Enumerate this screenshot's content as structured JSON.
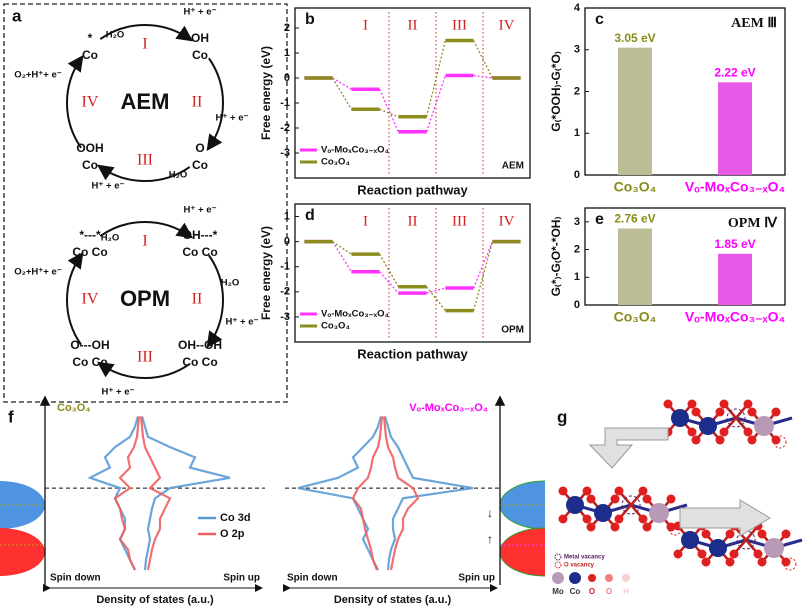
{
  "diagram_a": {
    "label": "a",
    "cycles": [
      {
        "title": "AEM",
        "steps": [
          "I",
          "II",
          "III",
          "IV"
        ],
        "species": [
          [
            "*",
            "Co"
          ],
          [
            "OH",
            "Co"
          ],
          [
            "O",
            "Co"
          ],
          [
            "OOH",
            "Co"
          ]
        ],
        "reactants": [
          "H₂O",
          "H⁺ + e⁻",
          "H⁺ + e⁻",
          "H₂O",
          "H⁺ + e⁻",
          "O₂+H⁺+ e⁻"
        ]
      },
      {
        "title": "OPM",
        "steps": [
          "I",
          "II",
          "III",
          "IV"
        ],
        "species": [
          [
            "*---*",
            "Co Co"
          ],
          [
            "OH---*",
            "Co Co"
          ],
          [
            "OH--OH",
            "Co Co"
          ],
          [
            "O---OH",
            "Co Co"
          ]
        ],
        "reactants": [
          "H₂O",
          "H⁺ + e⁻",
          "H₂O",
          "H⁺ + e⁻",
          "H⁺ + e⁻",
          "O₂+H⁺+ e⁻"
        ]
      }
    ]
  },
  "chart_data": [
    {
      "type": "energy_profile",
      "label": "b",
      "xlabel": "Reaction pathway",
      "ylabel": "Free energy (eV)",
      "annotation": "AEM",
      "steps": [
        "I",
        "II",
        "III",
        "IV"
      ],
      "ylim": [
        -4,
        2.8
      ],
      "yticks": [
        -3,
        -2,
        -1,
        0,
        1,
        2
      ],
      "series": [
        {
          "name": "Vₒ-MoₓCo₃₋ₓO₄",
          "color": "#ff33ff",
          "values": [
            0,
            -0.45,
            -2.15,
            0.1,
            0
          ]
        },
        {
          "name": "Co₃O₄",
          "color": "#8c8c1e",
          "values": [
            0,
            -1.25,
            -1.55,
            1.5,
            0
          ]
        }
      ]
    },
    {
      "type": "bar",
      "label": "c",
      "ylabel": "G₍*OOH₎-G₍*O₎",
      "annotation": "AEM Ⅲ",
      "categories": [
        "Co₃O₄",
        "Vₒ-MoₓCo₃₋ₓO₄"
      ],
      "values": [
        3.05,
        2.22
      ],
      "value_labels": [
        "3.05 eV",
        "2.22 eV"
      ],
      "colors": [
        "#bdbd95",
        "#e75ae7"
      ],
      "label_colors": [
        "#8b8b1a",
        "#ff00ff"
      ],
      "ylim": [
        0,
        4
      ],
      "yticks": [
        0,
        1,
        2,
        3,
        4
      ]
    },
    {
      "type": "energy_profile",
      "label": "d",
      "xlabel": "Reaction pathway",
      "ylabel": "Free energy (eV)",
      "annotation": "OPM",
      "steps": [
        "I",
        "II",
        "III",
        "IV"
      ],
      "ylim": [
        -4,
        1.5
      ],
      "yticks": [
        -3,
        -2,
        -1,
        0,
        1
      ],
      "series": [
        {
          "name": "Vₒ-MoₓCo₃₋ₓO₄",
          "color": "#ff33ff",
          "values": [
            0,
            -1.2,
            -2.05,
            -1.85,
            0
          ]
        },
        {
          "name": "Co₃O₄",
          "color": "#8c8c1e",
          "values": [
            0,
            -0.5,
            -1.8,
            -2.75,
            0
          ]
        }
      ]
    },
    {
      "type": "bar",
      "label": "e",
      "ylabel": "G₍*₎-G₍O*-*OH₎",
      "annotation": "OPM Ⅳ",
      "categories": [
        "Co₃O₄",
        "Vₒ-MoₓCo₃₋ₓO₄"
      ],
      "values": [
        2.76,
        1.85
      ],
      "value_labels": [
        "2.76 eV",
        "1.85 eV"
      ],
      "colors": [
        "#bdbd95",
        "#e75ae7"
      ],
      "label_colors": [
        "#8b8b1a",
        "#ff00ff"
      ],
      "ylim": [
        0,
        3.5
      ],
      "yticks": [
        0,
        1,
        2,
        3
      ]
    },
    {
      "type": "dos",
      "label": "f",
      "xlim": [
        -1,
        1
      ],
      "ylim": [
        -4,
        4.3
      ],
      "energy": [
        3.5,
        3,
        2.5,
        2,
        1.5,
        1,
        0.5,
        0,
        -0.5,
        -1,
        -1.5,
        -2,
        -2.5,
        -3,
        -3.5,
        -4
      ],
      "panels": [
        {
          "title": "Co₃O₄",
          "title_color": "#8b8b1a",
          "spin_down": "Spin down",
          "spin_up": "Spin up",
          "xlabel": "Density of states (a.u.)",
          "series": [
            {
              "name": "Co 3d",
              "color": "#5b9bd5",
              "up": [
                0.02,
                0.05,
                0.08,
                0.3,
                0.55,
                0.5,
                0.9,
                0.3,
                0.15,
                0.12,
                0.1,
                0.08,
                0.1,
                0.08,
                0.06,
                0.05
              ],
              "down": [
                -0.02,
                -0.05,
                -0.1,
                -0.25,
                -0.35,
                -0.3,
                -0.5,
                -0.2,
                -0.25,
                -0.2,
                -0.15,
                -0.15,
                -0.2,
                -0.15,
                -0.1,
                -0.05
              ]
            },
            {
              "name": "O 2p",
              "color": "#f06060",
              "up": [
                0.01,
                0.02,
                0.03,
                0.05,
                0.1,
                0.15,
                0.2,
                0.1,
                0.3,
                0.25,
                0.2,
                0.2,
                0.15,
                0.12,
                0.1,
                0.08
              ],
              "down": [
                -0.01,
                -0.02,
                -0.03,
                -0.06,
                -0.12,
                -0.1,
                -0.2,
                -0.1,
                -0.25,
                -0.2,
                -0.18,
                -0.15,
                -0.2,
                -0.12,
                -0.1,
                -0.05
              ]
            }
          ]
        },
        {
          "title": "Vₒ-MoₓCo₃₋ₓO₄",
          "title_color": "#ff00ff",
          "spin_down": "Spin down",
          "spin_up": "Spin up",
          "xlabel": "Density of states (a.u.)",
          "markers": [
            "↓",
            "↑"
          ],
          "series": [
            {
              "color": "#5b9bd5",
              "up": [
                0.02,
                0.05,
                0.08,
                0.15,
                0.2,
                0.25,
                0.3,
                0.9,
                0.2,
                0.15,
                0.1,
                0.1,
                0.12,
                0.08,
                0.06,
                0.05
              ],
              "down": [
                -0.02,
                -0.05,
                -0.1,
                -0.2,
                -0.3,
                -0.25,
                -0.45,
                -0.85,
                -0.3,
                -0.25,
                -0.2,
                -0.15,
                -0.2,
                -0.15,
                -0.1,
                -0.05
              ]
            },
            {
              "color": "#f06060",
              "up": [
                0.01,
                0.02,
                0.03,
                0.05,
                0.1,
                0.12,
                0.15,
                0.3,
                0.35,
                0.25,
                0.2,
                0.2,
                0.15,
                0.12,
                0.1,
                0.08
              ],
              "down": [
                -0.01,
                -0.02,
                -0.03,
                -0.05,
                -0.1,
                -0.12,
                -0.15,
                -0.25,
                -0.3,
                -0.22,
                -0.2,
                -0.18,
                -0.15,
                -0.12,
                -0.1,
                -0.06
              ]
            }
          ]
        }
      ]
    }
  ],
  "diagram_g": {
    "label": "g",
    "legend": [
      "Metal vacancy",
      "O vacancy"
    ],
    "elements": [
      "Mo",
      "Co",
      "O",
      "O",
      "H"
    ]
  }
}
